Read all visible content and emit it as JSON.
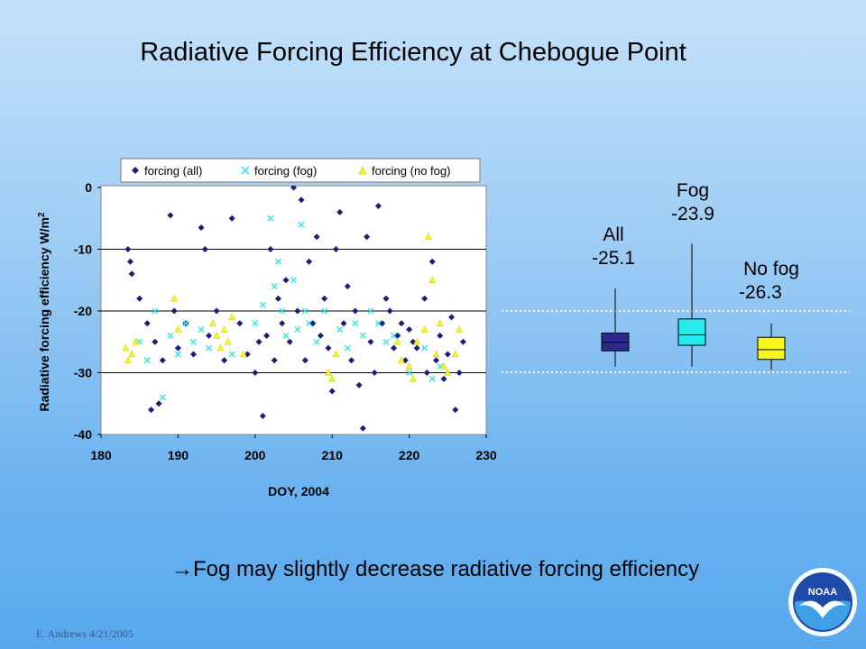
{
  "slide": {
    "title": "Radiative Forcing Efficiency at Chebogue Point",
    "conclusion": "→Fog may slightly decrease radiative forcing efficiency",
    "footer": "E. Andrews  4/21/2005",
    "logo_text": "NOAA"
  },
  "chart_data": [
    {
      "type": "scatter",
      "title": "",
      "xlabel": "DOY, 2004",
      "ylabel": "Radiative forcing efficiency W/m",
      "ylabel_sup": "2",
      "xlim": [
        180,
        230
      ],
      "ylim": [
        -40,
        0
      ],
      "xticks": [
        "180",
        "190",
        "200",
        "210",
        "220",
        "230"
      ],
      "yticks": [
        "0",
        "-10",
        "-20",
        "-30",
        "-40"
      ],
      "grid": "horizontal",
      "legend_position": "top",
      "series": [
        {
          "name": "forcing (all)",
          "marker": "diamond",
          "color": "#1c1c7a",
          "points": [
            [
              183.5,
              -10
            ],
            [
              183.8,
              -12
            ],
            [
              184,
              -14
            ],
            [
              185,
              -18
            ],
            [
              186,
              -22
            ],
            [
              186.5,
              -36
            ],
            [
              187,
              -25
            ],
            [
              187.5,
              -35
            ],
            [
              188,
              -28
            ],
            [
              189,
              -4.5
            ],
            [
              189.5,
              -20
            ],
            [
              190,
              -26
            ],
            [
              191,
              -22
            ],
            [
              192,
              -27
            ],
            [
              193,
              -6.5
            ],
            [
              193.5,
              -10
            ],
            [
              194,
              -24
            ],
            [
              195,
              -20
            ],
            [
              196,
              -28
            ],
            [
              197,
              -5
            ],
            [
              198,
              -22
            ],
            [
              199,
              -27
            ],
            [
              200,
              -30
            ],
            [
              200.5,
              -25
            ],
            [
              201,
              -37
            ],
            [
              201.5,
              -24
            ],
            [
              202,
              -10
            ],
            [
              202.5,
              -28
            ],
            [
              203,
              -18
            ],
            [
              203.5,
              -22
            ],
            [
              204,
              -15
            ],
            [
              204.5,
              -25
            ],
            [
              205,
              0
            ],
            [
              205.5,
              -20
            ],
            [
              206,
              -2
            ],
            [
              206.5,
              -28
            ],
            [
              207,
              -12
            ],
            [
              207.5,
              -22
            ],
            [
              208,
              -8
            ],
            [
              208.5,
              -24
            ],
            [
              209,
              -18
            ],
            [
              209.5,
              -26
            ],
            [
              210,
              -33
            ],
            [
              210.5,
              -10
            ],
            [
              211,
              -4
            ],
            [
              211.5,
              -22
            ],
            [
              212,
              -16
            ],
            [
              212.5,
              -28
            ],
            [
              213,
              -20
            ],
            [
              213.5,
              -32
            ],
            [
              214,
              -39
            ],
            [
              214.5,
              -8
            ],
            [
              215,
              -25
            ],
            [
              215.5,
              -30
            ],
            [
              216,
              -3
            ],
            [
              216.5,
              -22
            ],
            [
              217,
              -18
            ],
            [
              217.5,
              -20
            ],
            [
              218,
              -26
            ],
            [
              218.5,
              -24
            ],
            [
              219,
              -22
            ],
            [
              219.5,
              -28
            ],
            [
              220,
              -23
            ],
            [
              220.5,
              -25
            ],
            [
              221,
              -26
            ],
            [
              222,
              -18
            ],
            [
              222.3,
              -30
            ],
            [
              223,
              -12
            ],
            [
              223.5,
              -28
            ],
            [
              224,
              -24
            ],
            [
              224.5,
              -31
            ],
            [
              225,
              -27
            ],
            [
              225.5,
              -21
            ],
            [
              226,
              -36
            ],
            [
              226.5,
              -30
            ],
            [
              227,
              -25
            ]
          ]
        },
        {
          "name": "forcing (fog)",
          "marker": "x",
          "color": "#3ee6e6",
          "points": [
            [
              185,
              -25
            ],
            [
              186,
              -28
            ],
            [
              187,
              -20
            ],
            [
              188,
              -34
            ],
            [
              189,
              -24
            ],
            [
              190,
              -27
            ],
            [
              191,
              -22
            ],
            [
              192,
              -25
            ],
            [
              193,
              -23
            ],
            [
              194,
              -26
            ],
            [
              197,
              -27
            ],
            [
              200,
              -22
            ],
            [
              201,
              -19
            ],
            [
              202,
              -5
            ],
            [
              202.5,
              -16
            ],
            [
              203,
              -12
            ],
            [
              203.5,
              -20
            ],
            [
              204,
              -24
            ],
            [
              205,
              -15
            ],
            [
              205.5,
              -23
            ],
            [
              206,
              -6
            ],
            [
              206.5,
              -20
            ],
            [
              207,
              -22
            ],
            [
              208,
              -25
            ],
            [
              209,
              -20
            ],
            [
              211,
              -23
            ],
            [
              212,
              -26
            ],
            [
              213,
              -22
            ],
            [
              214,
              -24
            ],
            [
              215,
              -20
            ],
            [
              216,
              -22
            ],
            [
              217,
              -25
            ],
            [
              218,
              -24
            ],
            [
              220,
              -30
            ],
            [
              222,
              -26
            ],
            [
              223,
              -31
            ],
            [
              224,
              -29
            ]
          ]
        },
        {
          "name": "forcing (no fog)",
          "marker": "triangle",
          "color": "#f7f71a",
          "points": [
            [
              183.2,
              -26
            ],
            [
              183.5,
              -28
            ],
            [
              184,
              -27
            ],
            [
              184.5,
              -25
            ],
            [
              189.5,
              -18
            ],
            [
              190,
              -23
            ],
            [
              194.5,
              -22
            ],
            [
              195,
              -24
            ],
            [
              195.5,
              -26
            ],
            [
              196,
              -23
            ],
            [
              196.5,
              -25
            ],
            [
              197,
              -21
            ],
            [
              198.5,
              -27
            ],
            [
              209.5,
              -30
            ],
            [
              210,
              -31
            ],
            [
              210.5,
              -27
            ],
            [
              218.5,
              -25
            ],
            [
              219,
              -28
            ],
            [
              220,
              -29
            ],
            [
              220.5,
              -31
            ],
            [
              221,
              -25
            ],
            [
              222,
              -23
            ],
            [
              222.5,
              -8
            ],
            [
              223,
              -15
            ],
            [
              223.5,
              -27
            ],
            [
              224,
              -22
            ],
            [
              224.5,
              -29
            ],
            [
              225,
              -30
            ],
            [
              226,
              -27
            ],
            [
              226.5,
              -23
            ]
          ]
        }
      ]
    },
    {
      "type": "box",
      "categories": [
        "All",
        "Fog",
        "No fog"
      ],
      "values": [
        "-25.1",
        "-23.9",
        "-26.3"
      ],
      "colors": [
        "#2a2a8c",
        "#27eaea",
        "#f7f71a"
      ],
      "reference_lines": [
        -20,
        -30
      ],
      "boxes": [
        {
          "q1": -26.5,
          "median": -25.1,
          "q3": -23.6,
          "whisker_low": -29.1,
          "whisker_high": -16.3
        },
        {
          "q1": -25.6,
          "median": -23.9,
          "q3": -21.3,
          "whisker_low": -29.1,
          "whisker_high": -9.0
        },
        {
          "q1": -27.9,
          "median": -26.3,
          "q3": -24.3,
          "whisker_low": -29.6,
          "whisker_high": -22.0
        }
      ]
    }
  ]
}
